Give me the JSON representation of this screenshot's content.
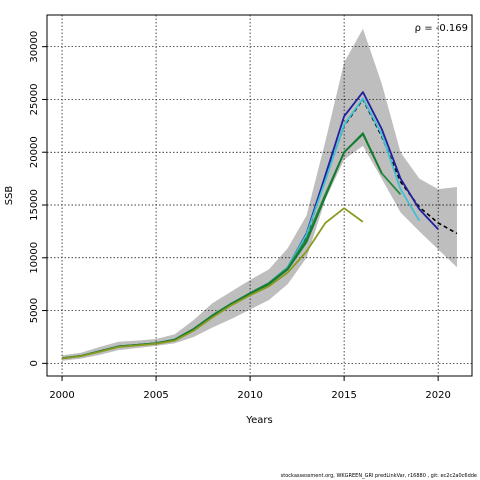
{
  "chart_data": {
    "type": "line",
    "title": "",
    "xlabel": "Years",
    "ylabel": "SSB",
    "xlim": [
      1999.2,
      2021.8
    ],
    "ylim": [
      -1200,
      33000
    ],
    "xticks": [
      2000,
      2005,
      2010,
      2015,
      2020
    ],
    "yticks": [
      0,
      5000,
      10000,
      15000,
      20000,
      25000,
      30000
    ],
    "grid": true,
    "annotation": "ρ = -0.169",
    "confidence_band": {
      "x": [
        2000,
        2001,
        2002,
        2003,
        2004,
        2005,
        2006,
        2007,
        2008,
        2009,
        2010,
        2011,
        2012,
        2013,
        2014,
        2015,
        2016,
        2017,
        2018,
        2019,
        2020,
        2021
      ],
      "upper": [
        750,
        1000,
        1550,
        2050,
        2150,
        2300,
        2750,
        4100,
        5700,
        6800,
        7900,
        8900,
        10900,
        14000,
        21000,
        28500,
        31700,
        26500,
        20000,
        17500,
        16500,
        16700
      ],
      "lower": [
        250,
        450,
        800,
        1250,
        1450,
        1650,
        1900,
        2500,
        3400,
        4200,
        5100,
        6000,
        7500,
        10000,
        15500,
        19300,
        20600,
        17500,
        14300,
        12500,
        10800,
        9100
      ]
    },
    "series": [
      {
        "color": "#000000",
        "dashed": true,
        "x": [
          2000,
          2001,
          2002,
          2003,
          2004,
          2005,
          2006,
          2007,
          2008,
          2009,
          2010,
          2011,
          2012,
          2013,
          2014,
          2015,
          2016,
          2017,
          2018,
          2019,
          2020,
          2021
        ],
        "y": [
          480,
          700,
          1150,
          1600,
          1750,
          1900,
          2250,
          3200,
          4500,
          5600,
          6600,
          7500,
          9000,
          12000,
          17500,
          22500,
          25000,
          21500,
          17200,
          14800,
          13300,
          12300
        ]
      },
      {
        "color": "#2020a0",
        "x": [
          2000,
          2001,
          2002,
          2003,
          2004,
          2005,
          2006,
          2007,
          2008,
          2009,
          2010,
          2011,
          2012,
          2013,
          2014,
          2015,
          2016,
          2017,
          2018,
          2019,
          2020
        ],
        "y": [
          480,
          700,
          1150,
          1600,
          1750,
          1900,
          2250,
          3250,
          4550,
          5650,
          6650,
          7600,
          9100,
          12300,
          17800,
          23400,
          25700,
          22200,
          17500,
          14600,
          12700
        ]
      },
      {
        "color": "#40c0d0",
        "x": [
          2000,
          2001,
          2002,
          2003,
          2004,
          2005,
          2006,
          2007,
          2008,
          2009,
          2010,
          2011,
          2012,
          2013,
          2014,
          2015,
          2016,
          2017,
          2018,
          2019
        ],
        "y": [
          480,
          700,
          1150,
          1600,
          1750,
          1900,
          2250,
          3250,
          4550,
          5650,
          6650,
          7600,
          9100,
          12200,
          17300,
          22600,
          25100,
          21700,
          16500,
          13500
        ]
      },
      {
        "color": "#1f8a3a",
        "x": [
          2000,
          2001,
          2002,
          2003,
          2004,
          2005,
          2006,
          2007,
          2008,
          2009,
          2010,
          2011,
          2012,
          2013,
          2014,
          2015,
          2016,
          2017,
          2018
        ],
        "y": [
          480,
          700,
          1150,
          1600,
          1750,
          1900,
          2250,
          3250,
          4550,
          5650,
          6650,
          7600,
          9000,
          11800,
          16000,
          20000,
          21700,
          18000,
          16000
        ]
      },
      {
        "color": "#157a32",
        "x": [
          2000,
          2001,
          2002,
          2003,
          2004,
          2005,
          2006,
          2007,
          2008,
          2009,
          2010,
          2011,
          2012,
          2013,
          2014,
          2015,
          2016,
          2017
        ],
        "y": [
          480,
          700,
          1150,
          1600,
          1750,
          1900,
          2250,
          3250,
          4500,
          5600,
          6600,
          7500,
          8900,
          11500,
          15800,
          20000,
          21800,
          18000
        ]
      },
      {
        "color": "#8a9a20",
        "x": [
          2000,
          2001,
          2002,
          2003,
          2004,
          2005,
          2006,
          2007,
          2008,
          2009,
          2010,
          2011,
          2012,
          2013,
          2014,
          2015,
          2016
        ],
        "y": [
          460,
          680,
          1100,
          1550,
          1700,
          1850,
          2150,
          3100,
          4350,
          5500,
          6450,
          7300,
          8600,
          10600,
          13300,
          14700,
          13400
        ]
      }
    ]
  },
  "footer": "stockassessment.org,  WKGREEN_GRI  predLinkVar,  r16880 ,  git: ec2c2a0c6dde"
}
